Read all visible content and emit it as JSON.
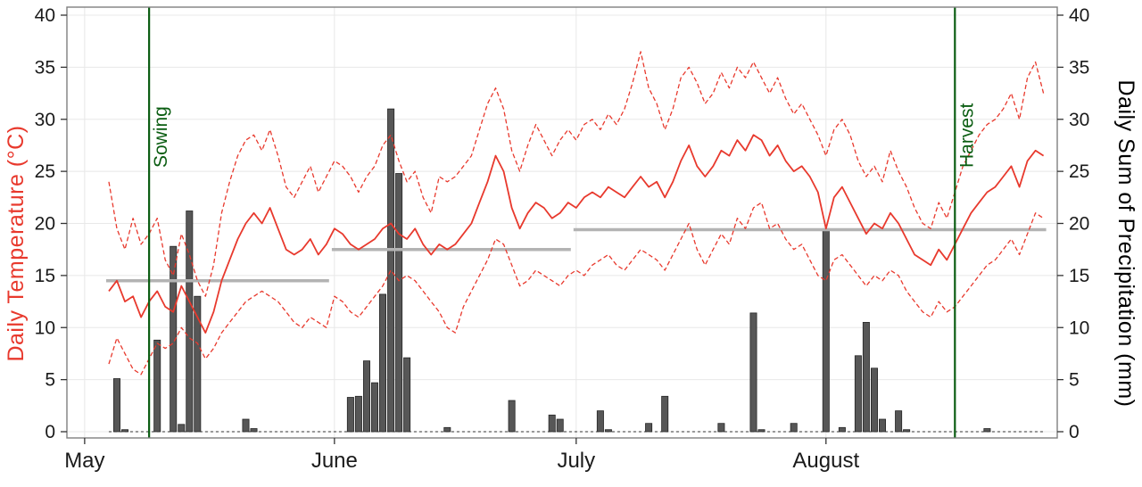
{
  "chart_data": {
    "type": "line",
    "title": "",
    "description": "Daily weather chart: red solid line = daily mean temperature, red dashed lines = daily max and min temperature, dark gray bars = daily precipitation sum, gray horizontal segments = phase mean temperatures, green vertical lines = sowing and harvest dates.",
    "x_axis": {
      "label": "",
      "domain_days": [
        -2.2,
        120.7
      ],
      "ticks": [
        {
          "label": "May",
          "day": 0
        },
        {
          "label": "June",
          "day": 31
        },
        {
          "label": "July",
          "day": 61
        },
        {
          "label": "August",
          "day": 92
        }
      ]
    },
    "y_left": {
      "label": "Daily Temperature (°C)",
      "range": [
        0,
        40
      ],
      "ticks": [
        0,
        5,
        10,
        15,
        20,
        25,
        30,
        35,
        40
      ]
    },
    "y_right": {
      "label": "Daily Sum of Precipitation (mm)",
      "range": [
        0,
        40
      ],
      "ticks": [
        0,
        5,
        10,
        15,
        20,
        25,
        30,
        35,
        40
      ]
    },
    "start_day": 3,
    "series": [
      {
        "name": "daily-max-temperature",
        "style": "dashed",
        "values": [
          24.0,
          19.5,
          17.5,
          20.5,
          18.0,
          19.0,
          20.5,
          16.5,
          15.0,
          19.0,
          17.0,
          14.5,
          13.0,
          16.0,
          21.0,
          24.0,
          26.5,
          28.0,
          28.5,
          27.0,
          29.0,
          26.5,
          23.5,
          22.5,
          24.0,
          25.5,
          23.0,
          24.5,
          26.0,
          25.5,
          24.5,
          23.0,
          24.5,
          25.5,
          27.5,
          28.5,
          26.0,
          24.0,
          25.0,
          22.5,
          21.0,
          24.5,
          24.0,
          24.5,
          25.5,
          26.5,
          29.0,
          31.5,
          33.0,
          31.0,
          27.0,
          25.0,
          27.5,
          29.5,
          28.0,
          26.5,
          28.0,
          29.0,
          28.0,
          29.5,
          30.0,
          29.0,
          30.5,
          29.5,
          31.0,
          33.5,
          36.5,
          33.0,
          31.5,
          29.0,
          31.0,
          34.0,
          35.0,
          33.5,
          31.5,
          32.5,
          34.5,
          33.0,
          35.0,
          34.0,
          35.5,
          34.0,
          32.5,
          34.0,
          32.0,
          30.5,
          31.5,
          30.0,
          28.5,
          26.5,
          29.0,
          30.0,
          28.5,
          26.0,
          24.5,
          25.5,
          24.0,
          27.0,
          25.0,
          23.5,
          21.5,
          20.0,
          19.5,
          22.0,
          20.5,
          23.0,
          25.5,
          27.0,
          28.5,
          29.5,
          30.0,
          31.0,
          32.5,
          30.0,
          34.0,
          35.5,
          32.5
        ]
      },
      {
        "name": "daily-mean-temperature",
        "style": "solid",
        "values": [
          13.5,
          14.5,
          12.5,
          13.0,
          11.0,
          12.5,
          13.5,
          12.0,
          11.5,
          14.0,
          12.5,
          11.0,
          9.5,
          11.5,
          14.5,
          16.5,
          18.5,
          20.0,
          21.0,
          20.0,
          21.5,
          19.5,
          17.5,
          17.0,
          17.5,
          18.5,
          17.0,
          18.0,
          19.5,
          19.0,
          18.0,
          17.5,
          18.0,
          18.5,
          19.5,
          20.0,
          19.0,
          18.5,
          19.5,
          18.0,
          17.0,
          18.0,
          17.5,
          18.0,
          19.0,
          20.0,
          22.0,
          24.0,
          26.5,
          25.0,
          21.5,
          19.5,
          21.0,
          22.0,
          21.5,
          20.5,
          21.0,
          22.0,
          21.5,
          22.5,
          23.0,
          22.5,
          23.5,
          23.0,
          22.5,
          23.5,
          24.5,
          23.5,
          24.0,
          22.5,
          24.0,
          26.0,
          27.5,
          25.5,
          24.5,
          25.5,
          27.0,
          26.5,
          28.0,
          27.0,
          28.5,
          28.0,
          26.5,
          27.5,
          26.0,
          25.0,
          25.5,
          24.5,
          23.0,
          19.5,
          22.5,
          23.5,
          22.0,
          20.5,
          19.0,
          20.0,
          19.5,
          21.0,
          20.0,
          18.5,
          17.0,
          16.5,
          16.0,
          17.5,
          16.5,
          18.0,
          19.5,
          21.0,
          22.0,
          23.0,
          23.5,
          24.5,
          25.5,
          23.5,
          26.0,
          27.0,
          26.5
        ]
      },
      {
        "name": "daily-min-temperature",
        "style": "dashed",
        "values": [
          6.5,
          9.0,
          7.5,
          6.0,
          5.5,
          7.0,
          8.5,
          8.0,
          8.5,
          10.0,
          9.0,
          8.5,
          7.0,
          8.0,
          9.5,
          10.5,
          11.5,
          12.5,
          13.0,
          13.5,
          13.0,
          12.5,
          11.5,
          10.5,
          10.0,
          11.0,
          10.5,
          10.0,
          13.0,
          12.5,
          11.5,
          11.0,
          12.0,
          13.0,
          14.0,
          15.5,
          14.5,
          15.0,
          14.5,
          13.5,
          12.5,
          11.5,
          10.0,
          9.5,
          12.0,
          13.5,
          15.0,
          16.5,
          18.5,
          18.0,
          16.0,
          14.0,
          14.5,
          15.5,
          15.0,
          14.5,
          14.0,
          15.0,
          15.5,
          15.0,
          16.0,
          16.5,
          17.0,
          16.0,
          15.5,
          16.5,
          17.5,
          17.0,
          16.5,
          15.5,
          17.0,
          18.5,
          20.0,
          17.5,
          16.0,
          17.5,
          19.0,
          18.0,
          20.5,
          19.5,
          21.5,
          22.0,
          19.5,
          20.0,
          18.5,
          17.5,
          18.0,
          16.5,
          15.0,
          14.5,
          16.5,
          17.0,
          16.0,
          15.0,
          14.0,
          15.0,
          14.5,
          15.5,
          15.0,
          13.5,
          12.5,
          11.5,
          11.0,
          12.5,
          11.5,
          12.0,
          13.0,
          14.0,
          15.0,
          16.0,
          16.5,
          17.5,
          18.5,
          17.0,
          19.0,
          21.0,
          20.5
        ]
      }
    ],
    "precipitation_mm": [
      0,
      5.1,
      0.2,
      0,
      0,
      0,
      8.8,
      0,
      17.8,
      0.7,
      21.2,
      13.0,
      0,
      0,
      0,
      0,
      0,
      1.2,
      0.3,
      0,
      0,
      0,
      0,
      0,
      0,
      0,
      0,
      0,
      0,
      0,
      3.3,
      3.4,
      6.8,
      4.7,
      13.2,
      31.0,
      24.8,
      7.1,
      0,
      0,
      0,
      0,
      0.4,
      0,
      0,
      0,
      0,
      0,
      0,
      0,
      3.0,
      0,
      0,
      0,
      0,
      1.6,
      1.2,
      0,
      0,
      0,
      0,
      2.0,
      0.2,
      0,
      0,
      0,
      0,
      0.8,
      0,
      3.4,
      0,
      0,
      0,
      0,
      0,
      0,
      0.8,
      0,
      0,
      0,
      11.4,
      0.2,
      0,
      0,
      0,
      0.8,
      0,
      0,
      0,
      19.5,
      0,
      0.4,
      0,
      7.3,
      10.5,
      6.1,
      1.2,
      0,
      2.0,
      0.2,
      0,
      0,
      0,
      0,
      0,
      0,
      0,
      0,
      0,
      0.3,
      0,
      0,
      0,
      0,
      0,
      0,
      0
    ],
    "phase_mean_lines": [
      {
        "from_day": 3,
        "to_day": 30,
        "value": 14.5
      },
      {
        "from_day": 31,
        "to_day": 60,
        "value": 17.5
      },
      {
        "from_day": 61,
        "to_day": 119,
        "value": 19.4
      }
    ],
    "events": [
      {
        "label": "Sowing",
        "day": 8
      },
      {
        "label": "Harvest",
        "day": 108
      }
    ],
    "colors": {
      "temperature_red": "#e8392d",
      "precipitation_bar": "#575757",
      "bar_border": "#262626",
      "phase_mean_gray": "#b3b3b3",
      "event_green": "#0b5d12",
      "panel_border": "#7f7f7f",
      "grid": "#e8e8e8",
      "tick_text": "#1a1a1a",
      "zero_baseline": "#333333"
    },
    "legend_position": "none",
    "grid": true
  }
}
